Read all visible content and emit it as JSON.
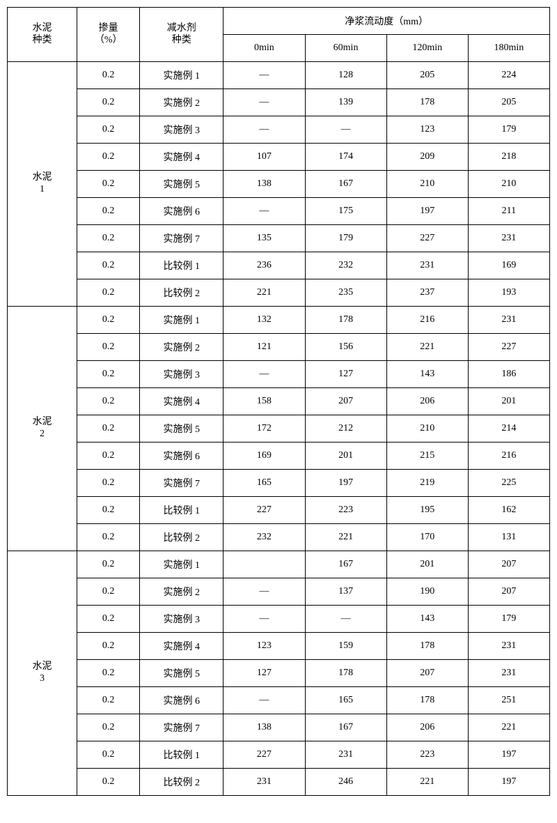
{
  "headers": {
    "cement_type_l1": "水泥",
    "cement_type_l2": "种类",
    "dosage_l1": "掺量",
    "dosage_l2": "（%）",
    "reducer_l1": "减水剂",
    "reducer_l2": "种类",
    "fluidity_header": "净浆流动度（mm）",
    "t0": "0min",
    "t60": "60min",
    "t120": "120min",
    "t180": "180min"
  },
  "groups": [
    {
      "label_l1": "水泥",
      "label_l2": "1",
      "rows": [
        {
          "dosage": "0.2",
          "reducer": "实施例 1",
          "v0": "—",
          "v60": "128",
          "v120": "205",
          "v180": "224"
        },
        {
          "dosage": "0.2",
          "reducer": "实施例 2",
          "v0": "—",
          "v60": "139",
          "v120": "178",
          "v180": "205"
        },
        {
          "dosage": "0.2",
          "reducer": "实施例 3",
          "v0": "—",
          "v60": "—",
          "v120": "123",
          "v180": "179"
        },
        {
          "dosage": "0.2",
          "reducer": "实施例 4",
          "v0": "107",
          "v60": "174",
          "v120": "209",
          "v180": "218"
        },
        {
          "dosage": "0.2",
          "reducer": "实施例 5",
          "v0": "138",
          "v60": "167",
          "v120": "210",
          "v180": "210"
        },
        {
          "dosage": "0.2",
          "reducer": "实施例 6",
          "v0": "—",
          "v60": "175",
          "v120": "197",
          "v180": "211"
        },
        {
          "dosage": "0.2",
          "reducer": "实施例 7",
          "v0": "135",
          "v60": "179",
          "v120": "227",
          "v180": "231"
        },
        {
          "dosage": "0.2",
          "reducer": "比较例 1",
          "v0": "236",
          "v60": "232",
          "v120": "231",
          "v180": "169"
        },
        {
          "dosage": "0.2",
          "reducer": "比较例 2",
          "v0": "221",
          "v60": "235",
          "v120": "237",
          "v180": "193"
        }
      ]
    },
    {
      "label_l1": "水泥",
      "label_l2": "2",
      "rows": [
        {
          "dosage": "0.2",
          "reducer": "实施例 1",
          "v0": "132",
          "v60": "178",
          "v120": "216",
          "v180": "231"
        },
        {
          "dosage": "0.2",
          "reducer": "实施例 2",
          "v0": "121",
          "v60": "156",
          "v120": "221",
          "v180": "227"
        },
        {
          "dosage": "0.2",
          "reducer": "实施例 3",
          "v0": "—",
          "v60": "127",
          "v120": "143",
          "v180": "186"
        },
        {
          "dosage": "0.2",
          "reducer": "实施例 4",
          "v0": "158",
          "v60": "207",
          "v120": "206",
          "v180": "201"
        },
        {
          "dosage": "0.2",
          "reducer": "实施例 5",
          "v0": "172",
          "v60": "212",
          "v120": "210",
          "v180": "214"
        },
        {
          "dosage": "0.2",
          "reducer": "实施例 6",
          "v0": "169",
          "v60": "201",
          "v120": "215",
          "v180": "216"
        },
        {
          "dosage": "0.2",
          "reducer": "实施例 7",
          "v0": "165",
          "v60": "197",
          "v120": "219",
          "v180": "225"
        },
        {
          "dosage": "0.2",
          "reducer": "比较例 1",
          "v0": "227",
          "v60": "223",
          "v120": "195",
          "v180": "162"
        },
        {
          "dosage": "0.2",
          "reducer": "比较例 2",
          "v0": "232",
          "v60": "221",
          "v120": "170",
          "v180": "131"
        }
      ]
    },
    {
      "label_l1": "水泥",
      "label_l2": "3",
      "rows": [
        {
          "dosage": "0.2",
          "reducer": "实施例 1",
          "v0": "",
          "v60": "167",
          "v120": "201",
          "v180": "207"
        },
        {
          "dosage": "0.2",
          "reducer": "实施例 2",
          "v0": "—",
          "v60": "137",
          "v120": "190",
          "v180": "207"
        },
        {
          "dosage": "0.2",
          "reducer": "实施例 3",
          "v0": "—",
          "v60": "—",
          "v120": "143",
          "v180": "179"
        },
        {
          "dosage": "0.2",
          "reducer": "实施例 4",
          "v0": "123",
          "v60": "159",
          "v120": "178",
          "v180": "231"
        },
        {
          "dosage": "0.2",
          "reducer": "实施例 5",
          "v0": "127",
          "v60": "178",
          "v120": "207",
          "v180": "231"
        },
        {
          "dosage": "0.2",
          "reducer": "实施例 6",
          "v0": "—",
          "v60": "165",
          "v120": "178",
          "v180": "251"
        },
        {
          "dosage": "0.2",
          "reducer": "实施例 7",
          "v0": "138",
          "v60": "167",
          "v120": "206",
          "v180": "221"
        },
        {
          "dosage": "0.2",
          "reducer": "比较例 1",
          "v0": "227",
          "v60": "231",
          "v120": "223",
          "v180": "197"
        },
        {
          "dosage": "0.2",
          "reducer": "比较例 2",
          "v0": "231",
          "v60": "246",
          "v120": "221",
          "v180": "197"
        }
      ]
    }
  ]
}
